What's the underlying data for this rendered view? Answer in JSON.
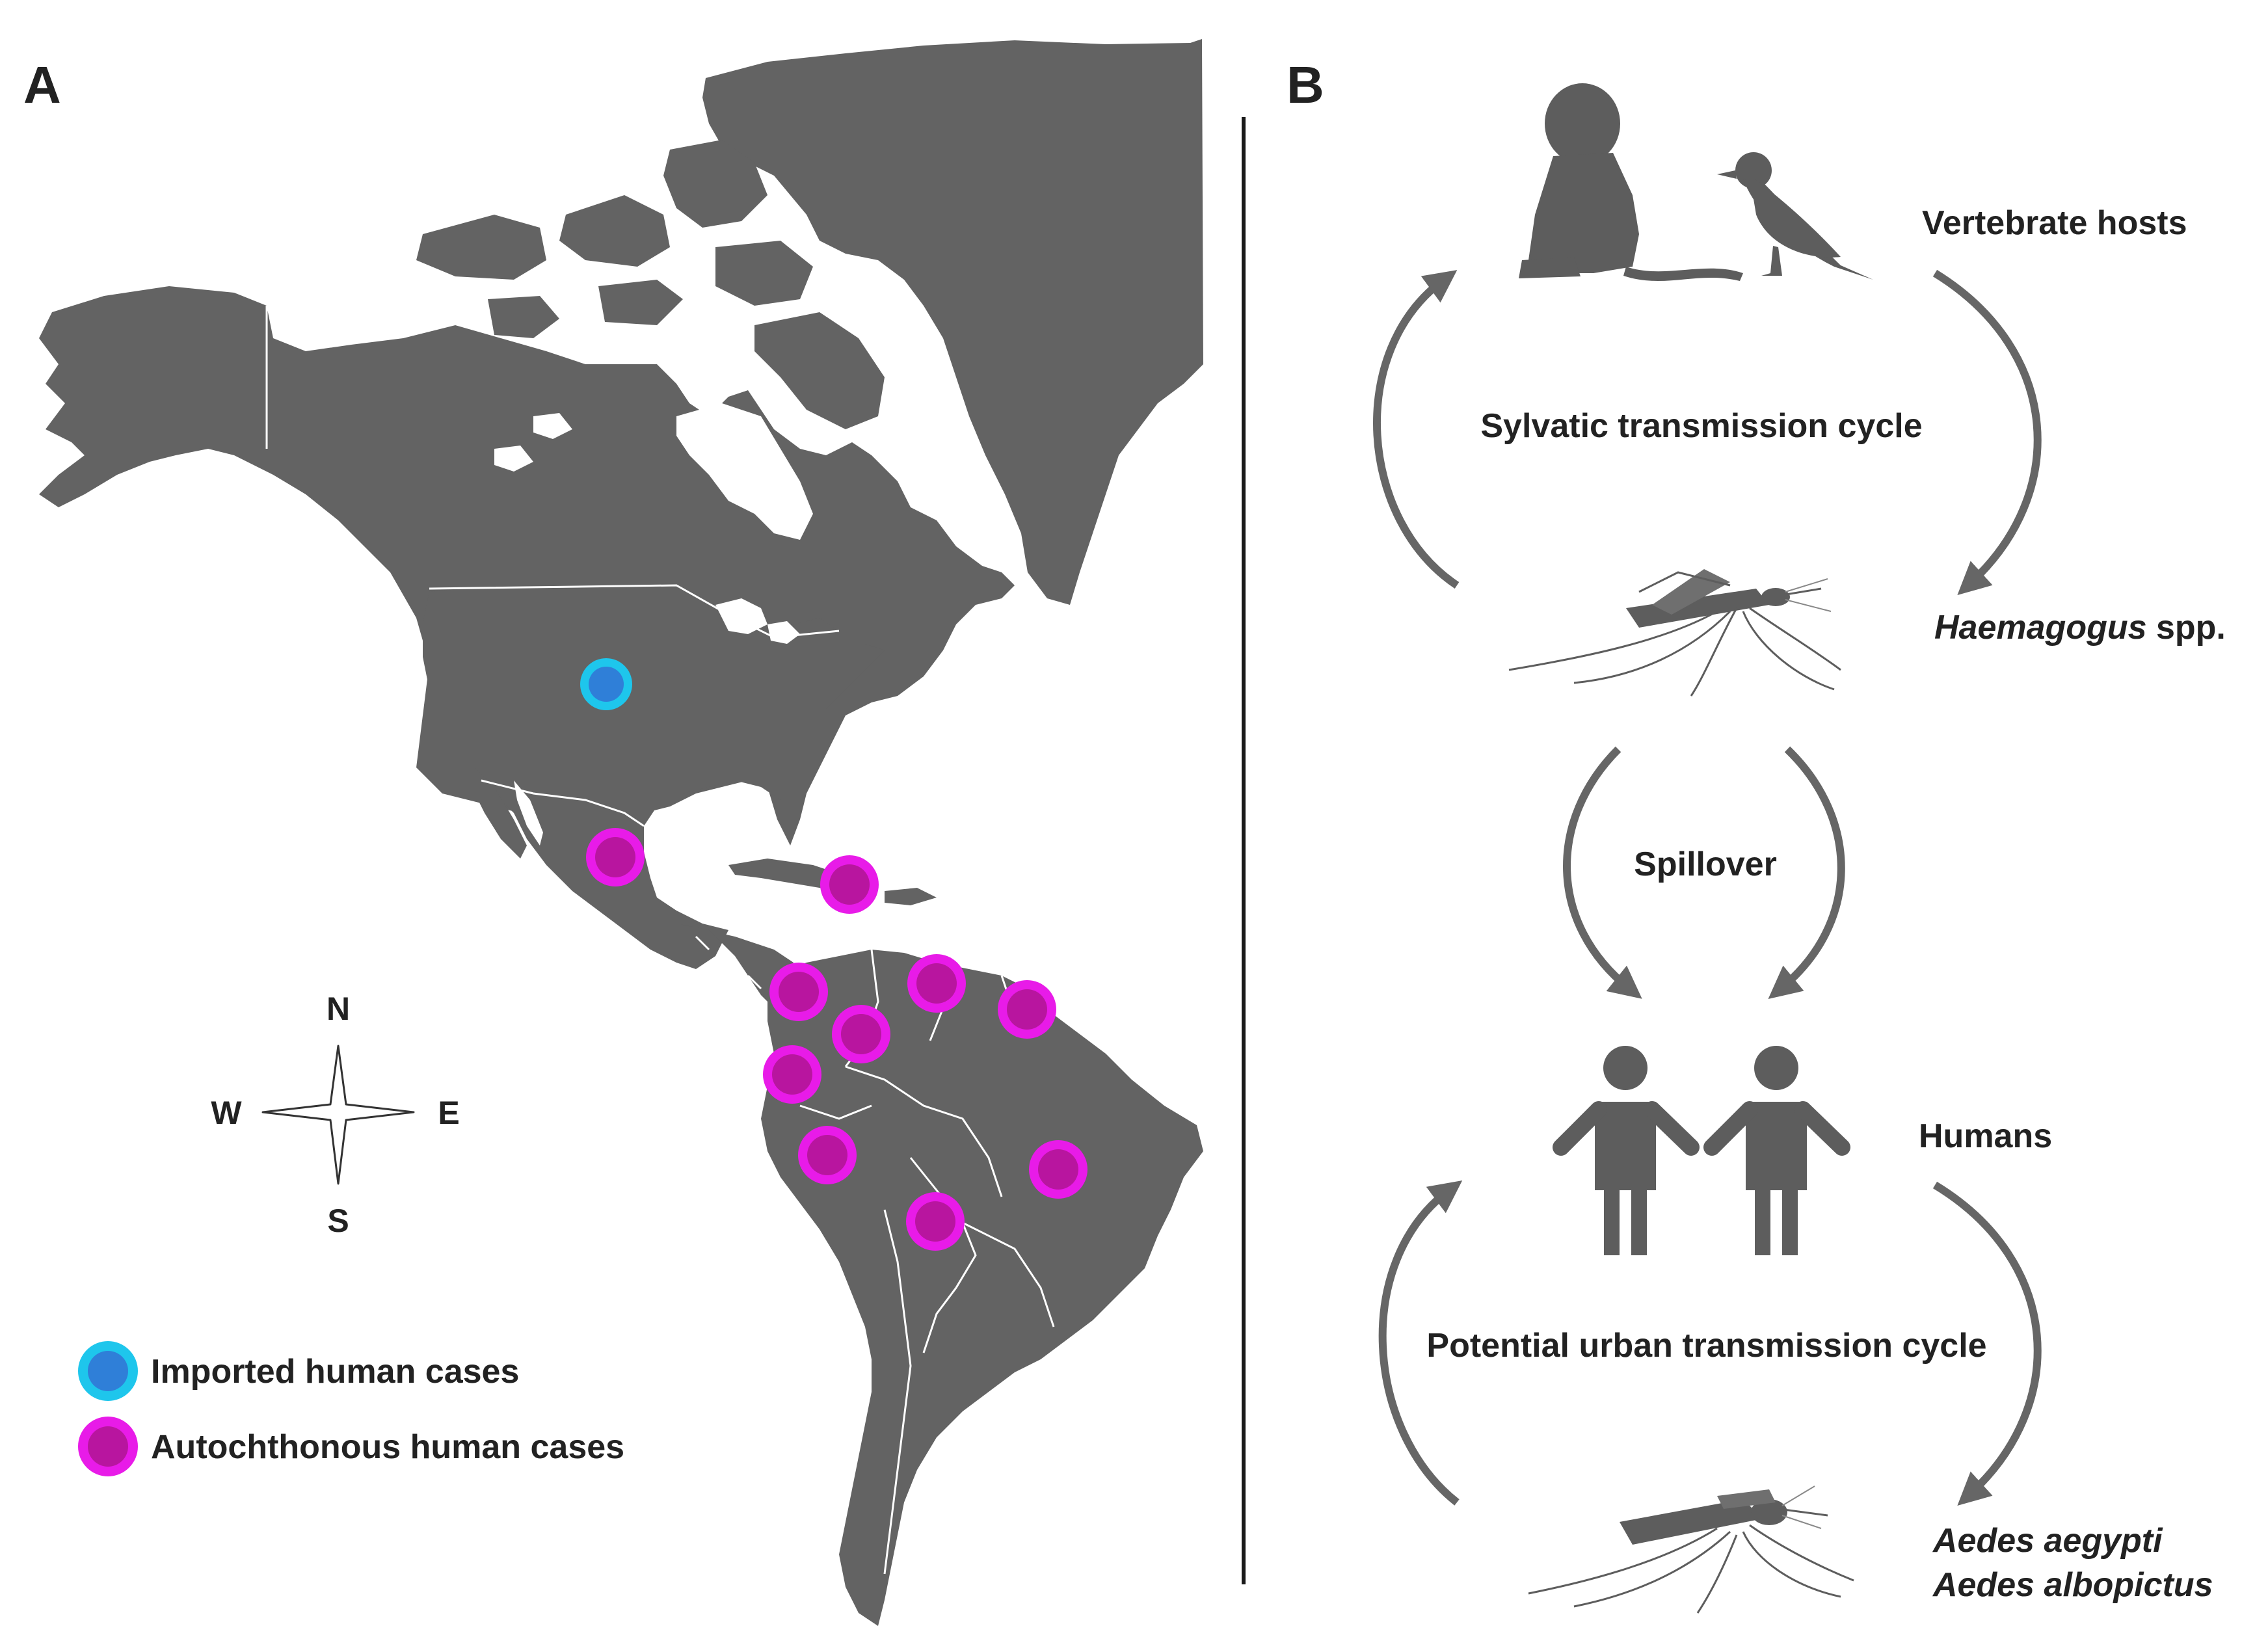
{
  "panels": {
    "a": {
      "label": "A"
    },
    "b": {
      "label": "B"
    }
  },
  "colors": {
    "land": "#636363",
    "border": "#ffffff",
    "imported_ring": "#1ec6ec",
    "imported_fill": "#2f7fd8",
    "autochthonous_ring": "#e81be8",
    "autochthonous_fill": "#b8159f",
    "silhouette": "#5d5d5d",
    "arrow": "#666666",
    "text": "#222222"
  },
  "compass": {
    "n": "N",
    "s": "S",
    "e": "E",
    "w": "W"
  },
  "legend": {
    "imported": "Imported human cases",
    "autochthonous": "Autochthonous human cases"
  },
  "map_markers": [
    {
      "type": "imported",
      "region": "United States"
    },
    {
      "type": "autochthonous",
      "region": "Mexico"
    },
    {
      "type": "autochthonous",
      "region": "Caribbean"
    },
    {
      "type": "autochthonous",
      "region": "Panama"
    },
    {
      "type": "autochthonous",
      "region": "Venezuela"
    },
    {
      "type": "autochthonous",
      "region": "Guiana"
    },
    {
      "type": "autochthonous",
      "region": "Colombia"
    },
    {
      "type": "autochthonous",
      "region": "Ecuador"
    },
    {
      "type": "autochthonous",
      "region": "Peru"
    },
    {
      "type": "autochthonous",
      "region": "Brazil"
    },
    {
      "type": "autochthonous",
      "region": "Bolivia"
    }
  ],
  "cycle": {
    "vertebrate_hosts": "Vertebrate hosts",
    "sylvatic": "Sylvatic transmission cycle",
    "haemagogus_italic": "Haemagogus",
    "haemagogus_rest": " spp.",
    "spillover": "Spillover",
    "humans": "Humans",
    "urban": "Potential urban transmission cycle",
    "aedes_1": "Aedes aegypti",
    "aedes_2": "Aedes albopictus"
  },
  "icons": [
    "monkey-icon",
    "bird-icon",
    "mosquito-icon",
    "human-icon",
    "compass-rose-icon"
  ]
}
